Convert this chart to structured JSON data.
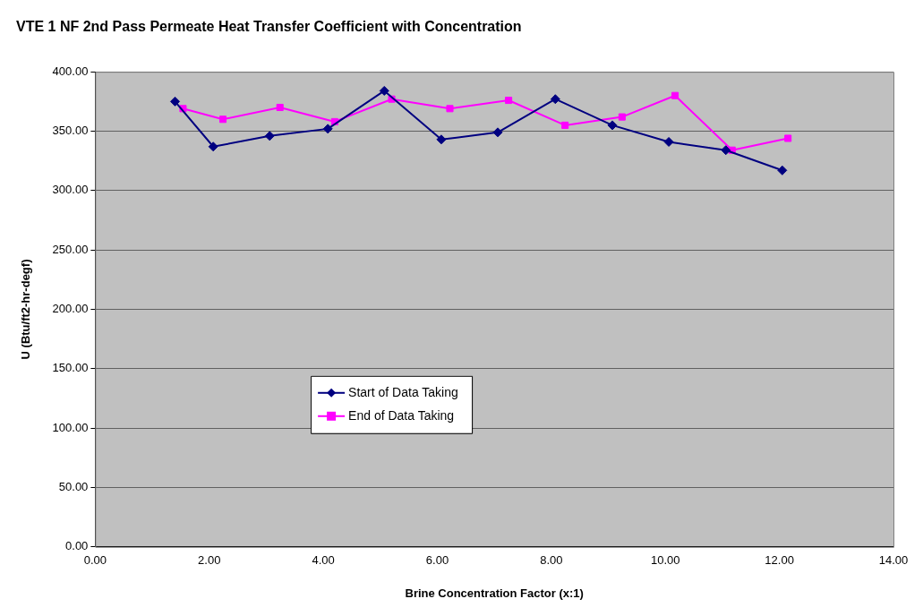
{
  "chart_data": {
    "type": "line",
    "title": "VTE 1 NF 2nd Pass Permeate Heat Transfer Coefficient with Concentration",
    "xlabel": "Brine Concentration Factor (x:1)",
    "ylabel": "U (Btu/ft2-hr-degf)",
    "xlim": [
      0,
      14
    ],
    "xticks": [
      {
        "value": 0,
        "label": "0.00"
      },
      {
        "value": 2,
        "label": "2.00"
      },
      {
        "value": 4,
        "label": "4.00"
      },
      {
        "value": 6,
        "label": "6.00"
      },
      {
        "value": 8,
        "label": "8.00"
      },
      {
        "value": 10,
        "label": "10.00"
      },
      {
        "value": 12,
        "label": "12.00"
      },
      {
        "value": 14,
        "label": "14.00"
      }
    ],
    "ylim": [
      0,
      400
    ],
    "yticks": [
      {
        "value": 0,
        "label": "0.00"
      },
      {
        "value": 50,
        "label": "50.00"
      },
      {
        "value": 100,
        "label": "100.00"
      },
      {
        "value": 150,
        "label": "150.00"
      },
      {
        "value": 200,
        "label": "200.00"
      },
      {
        "value": 250,
        "label": "250.00"
      },
      {
        "value": 300,
        "label": "300.00"
      },
      {
        "value": 350,
        "label": "350.00"
      },
      {
        "value": 400,
        "label": "400.00"
      }
    ],
    "grid": "y",
    "legend": "center left",
    "line_style": "solid",
    "series": [
      {
        "name": "Start of Data Taking",
        "color": "#000080",
        "marker": "diamond",
        "x": [
          1.4,
          2.07,
          3.06,
          4.08,
          5.07,
          6.07,
          7.06,
          8.07,
          9.07,
          10.06,
          11.06,
          12.05
        ],
        "values": [
          375,
          337,
          346,
          352,
          384,
          343,
          349,
          377,
          355,
          341,
          334,
          317
        ]
      },
      {
        "name": "End of Data Taking",
        "color": "#ff00ff",
        "marker": "square",
        "x": [
          1.54,
          2.24,
          3.24,
          4.2,
          5.2,
          6.22,
          7.25,
          8.24,
          9.24,
          10.17,
          11.17,
          12.15
        ],
        "values": [
          369,
          360,
          370,
          358,
          377,
          369,
          376,
          355,
          362,
          380,
          334,
          344
        ]
      }
    ]
  }
}
